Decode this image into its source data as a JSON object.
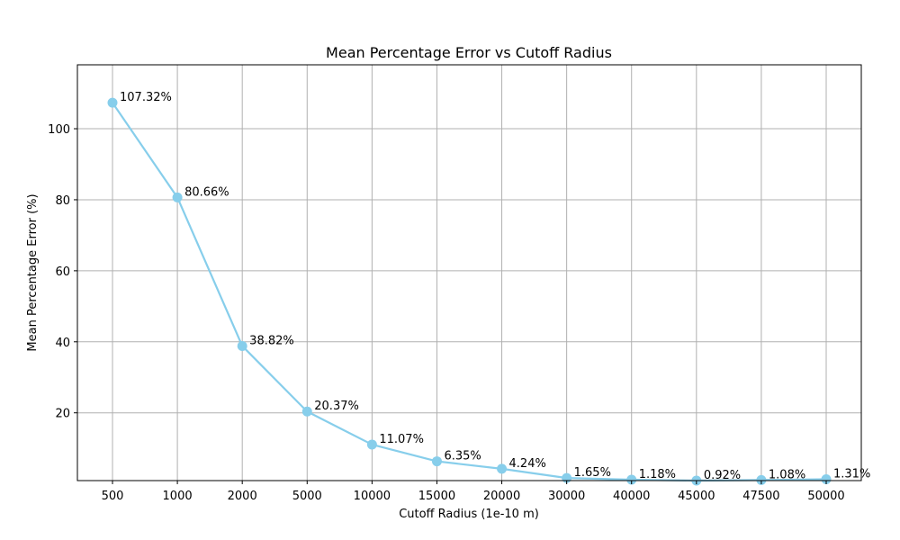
{
  "chart_data": {
    "type": "line",
    "title": "Mean Percentage Error vs Cutoff Radius",
    "xlabel": "Cutoff Radius (1e-10 m)",
    "ylabel": "Mean Percentage Error (%)",
    "categories": [
      "500",
      "1000",
      "2000",
      "5000",
      "10000",
      "15000",
      "20000",
      "30000",
      "40000",
      "45000",
      "47500",
      "50000"
    ],
    "series": [
      {
        "values": [
          107.32,
          80.66,
          38.82,
          20.37,
          11.07,
          6.35,
          4.24,
          1.65,
          1.18,
          0.92,
          1.08,
          1.31
        ],
        "labels": [
          "107.32%",
          "80.66%",
          "38.82%",
          "20.37%",
          "11.07%",
          "6.35%",
          "4.24%",
          "1.65%",
          "1.18%",
          "0.92%",
          "1.08%",
          "1.31%"
        ]
      }
    ],
    "yticks": [
      20,
      40,
      60,
      80,
      100
    ],
    "ylim": [
      0.92,
      118
    ],
    "grid": true,
    "line_color": "#87ceeb"
  }
}
